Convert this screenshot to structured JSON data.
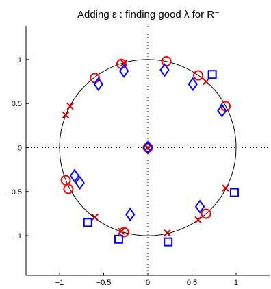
{
  "chart_data": {
    "type": "scatter",
    "title": "Adding ε : finding good λ for R⁻",
    "xlabel": "",
    "ylabel": "",
    "xlim": [
      -1.38,
      1.38
    ],
    "ylim": [
      -1.45,
      1.38
    ],
    "xticks": [
      -1,
      -0.5,
      0,
      0.5,
      1
    ],
    "yticks": [
      -1,
      -0.5,
      0,
      0.5,
      1
    ],
    "xtick_labels": [
      "−1",
      "−0.5",
      "0",
      "0.5",
      "1"
    ],
    "ytick_labels": [
      "−1",
      "−0.5",
      "0",
      "0.5",
      "1"
    ],
    "grid": false,
    "reference_lines": {
      "x": 0,
      "y": 0,
      "style": "dotted"
    },
    "unit_circle": {
      "cx": 0,
      "cy": 0,
      "r": 1
    },
    "series": [
      {
        "marker": "circle",
        "color": "#ff0000",
        "points": [
          [
            -0.3,
            0.95
          ],
          [
            0.21,
            0.98
          ],
          [
            -0.6,
            0.79
          ],
          [
            0.57,
            0.82
          ],
          [
            0.88,
            0.47
          ],
          [
            -0.93,
            -0.37
          ],
          [
            -0.9,
            -0.47
          ],
          [
            0.66,
            -0.75
          ],
          [
            -0.27,
            -0.96
          ],
          [
            0.0,
            0.0
          ]
        ]
      },
      {
        "marker": "x",
        "color": "#cc0000",
        "points": [
          [
            -0.27,
            0.96
          ],
          [
            0.66,
            0.75
          ],
          [
            -0.88,
            0.47
          ],
          [
            -0.93,
            0.37
          ],
          [
            0.88,
            -0.46
          ],
          [
            0.57,
            -0.82
          ],
          [
            -0.6,
            -0.79
          ],
          [
            -0.3,
            -0.95
          ],
          [
            0.22,
            -0.97
          ],
          [
            0.0,
            0.0
          ]
        ]
      },
      {
        "marker": "diamond",
        "color": "#0000ff",
        "points": [
          [
            -0.27,
            0.87
          ],
          [
            0.19,
            0.88
          ],
          [
            -0.56,
            0.72
          ],
          [
            0.51,
            0.72
          ],
          [
            0.84,
            0.42
          ],
          [
            -0.83,
            -0.32
          ],
          [
            -0.77,
            -0.4
          ],
          [
            0.59,
            -0.67
          ],
          [
            -0.2,
            -0.76
          ],
          [
            0.0,
            0.0
          ]
        ]
      },
      {
        "marker": "square",
        "color": "#0000ff",
        "points": [
          [
            0.73,
            0.83
          ],
          [
            0.98,
            -0.51
          ],
          [
            -0.68,
            -0.85
          ],
          [
            -0.33,
            -1.04
          ],
          [
            0.23,
            -1.07
          ]
        ]
      }
    ]
  }
}
